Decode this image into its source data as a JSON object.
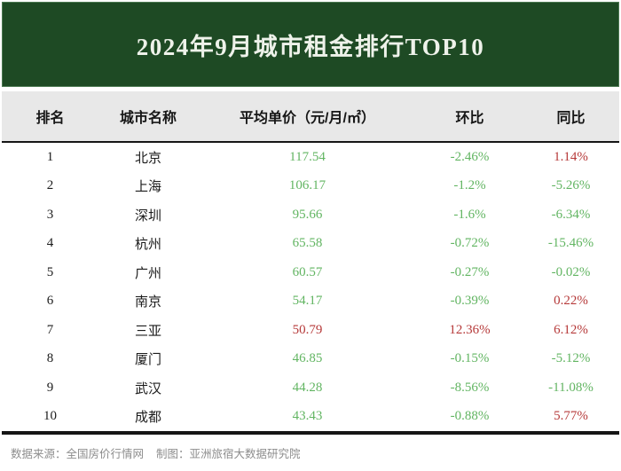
{
  "title": "2024年9月城市租金排行TOP10",
  "table": {
    "headers": [
      "排名",
      "城市名称",
      "平均单价（元/月/㎡）",
      "环比",
      "同比"
    ],
    "rows": [
      {
        "rank": "1",
        "city": "北京",
        "price": "117.54",
        "price_trend": "down",
        "mom": "-2.46%",
        "mom_trend": "down",
        "yoy": "1.14%",
        "yoy_trend": "up"
      },
      {
        "rank": "2",
        "city": "上海",
        "price": "106.17",
        "price_trend": "down",
        "mom": "-1.2%",
        "mom_trend": "down",
        "yoy": "-5.26%",
        "yoy_trend": "down"
      },
      {
        "rank": "3",
        "city": "深圳",
        "price": "95.66",
        "price_trend": "down",
        "mom": "-1.6%",
        "mom_trend": "down",
        "yoy": "-6.34%",
        "yoy_trend": "down"
      },
      {
        "rank": "4",
        "city": "杭州",
        "price": "65.58",
        "price_trend": "down",
        "mom": "-0.72%",
        "mom_trend": "down",
        "yoy": "-15.46%",
        "yoy_trend": "down"
      },
      {
        "rank": "5",
        "city": "广州",
        "price": "60.57",
        "price_trend": "down",
        "mom": "-0.27%",
        "mom_trend": "down",
        "yoy": "-0.02%",
        "yoy_trend": "down"
      },
      {
        "rank": "6",
        "city": "南京",
        "price": "54.17",
        "price_trend": "down",
        "mom": "-0.39%",
        "mom_trend": "down",
        "yoy": "0.22%",
        "yoy_trend": "up"
      },
      {
        "rank": "7",
        "city": "三亚",
        "price": "50.79",
        "price_trend": "up",
        "mom": "12.36%",
        "mom_trend": "up",
        "yoy": "6.12%",
        "yoy_trend": "up"
      },
      {
        "rank": "8",
        "city": "厦门",
        "price": "46.85",
        "price_trend": "down",
        "mom": "-0.15%",
        "mom_trend": "down",
        "yoy": "-5.12%",
        "yoy_trend": "down"
      },
      {
        "rank": "9",
        "city": "武汉",
        "price": "44.28",
        "price_trend": "down",
        "mom": "-8.56%",
        "mom_trend": "down",
        "yoy": "-11.08%",
        "yoy_trend": "down"
      },
      {
        "rank": "10",
        "city": "成都",
        "price": "43.43",
        "price_trend": "down",
        "mom": "-0.88%",
        "mom_trend": "down",
        "yoy": "5.77%",
        "yoy_trend": "up"
      }
    ]
  },
  "footer": {
    "source_label": "数据来源：全国房价行情网",
    "credit_label": "制图：亚洲旅宿大数据研究院"
  },
  "colors": {
    "up": "#b63a3a",
    "down": "#62b562",
    "banner_bg": "#1e4a24",
    "header_bg": "#e8e8e8",
    "title_text": "#eef2ea",
    "rule": "#161616",
    "footer_text": "#8d8d8d"
  }
}
